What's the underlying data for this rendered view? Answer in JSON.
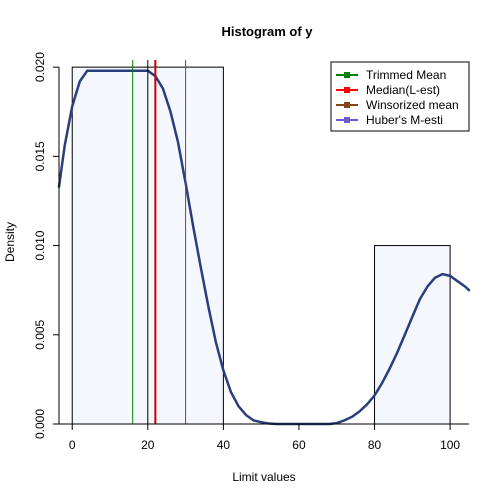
{
  "chart_data": {
    "type": "histogram",
    "title": "Histogram of y",
    "xlabel": "Limit values",
    "ylabel": "Density",
    "xlim": [
      -3.5,
      105
    ],
    "ylim": [
      0,
      0.0204
    ],
    "x_ticks": [
      0,
      20,
      40,
      60,
      80,
      100
    ],
    "x_tick_labels": [
      "0",
      "20",
      "40",
      "60",
      "80",
      "100"
    ],
    "y_ticks": [
      0.0,
      0.005,
      0.01,
      0.015,
      0.02
    ],
    "y_tick_labels": [
      "0.000",
      "0.005",
      "0.010",
      "0.015",
      "0.020"
    ],
    "grid": false,
    "histogram": {
      "bins": [
        {
          "from": 0,
          "to": 40,
          "density": 0.02
        },
        {
          "from": 40,
          "to": 80,
          "density": 0.0
        },
        {
          "from": 80,
          "to": 100,
          "density": 0.01
        }
      ],
      "fill": "#f5f7ff",
      "border": "#000000"
    },
    "density_curve": {
      "color": "#2b3d7c",
      "x": [
        -3.5,
        -2,
        0,
        2,
        4,
        6,
        8,
        10,
        12,
        14,
        16,
        18,
        20,
        22,
        24,
        26,
        28,
        30,
        32,
        34,
        36,
        38,
        40,
        42,
        44,
        46,
        48,
        50,
        52,
        54,
        56,
        58,
        60,
        62,
        64,
        66,
        68,
        70,
        72,
        74,
        76,
        78,
        80,
        82,
        84,
        86,
        88,
        90,
        92,
        94,
        96,
        98,
        100,
        102,
        104,
        105
      ],
      "y": [
        0.0133,
        0.0156,
        0.0178,
        0.0192,
        0.0198,
        0.0198,
        0.0198,
        0.0198,
        0.0198,
        0.0198,
        0.0198,
        0.0198,
        0.0198,
        0.0195,
        0.0188,
        0.0175,
        0.0158,
        0.0135,
        0.0111,
        0.0088,
        0.0066,
        0.0046,
        0.003,
        0.0018,
        0.001,
        0.0005,
        0.0002,
        0.0001,
        3e-05,
        0.0,
        0.0,
        0.0,
        0.0,
        0.0,
        0.0,
        0.0,
        0.0,
        5e-05,
        0.0002,
        0.0004,
        0.0007,
        0.0011,
        0.0016,
        0.0023,
        0.0031,
        0.004,
        0.005,
        0.006,
        0.007,
        0.0077,
        0.0082,
        0.0084,
        0.0083,
        0.008,
        0.0077,
        0.0075
      ]
    },
    "vlines": [
      {
        "x": 16,
        "color": "#008000",
        "width": 1
      },
      {
        "x": 20,
        "color": "#000000",
        "width": 1
      },
      {
        "x": 22,
        "color": "#cc0000",
        "width": 2
      },
      {
        "x": 30,
        "color": "#8b4513",
        "width": 1
      }
    ],
    "legend": {
      "position": "top-right",
      "entries": [
        {
          "label": "Trimmed Mean",
          "color": "#008000"
        },
        {
          "label": "Median(L-est)",
          "color": "#ff0000"
        },
        {
          "label": "Winsorized mean",
          "color": "#8b4513"
        },
        {
          "label": "Huber's M-esti",
          "color": "#6a5acd"
        }
      ]
    }
  }
}
